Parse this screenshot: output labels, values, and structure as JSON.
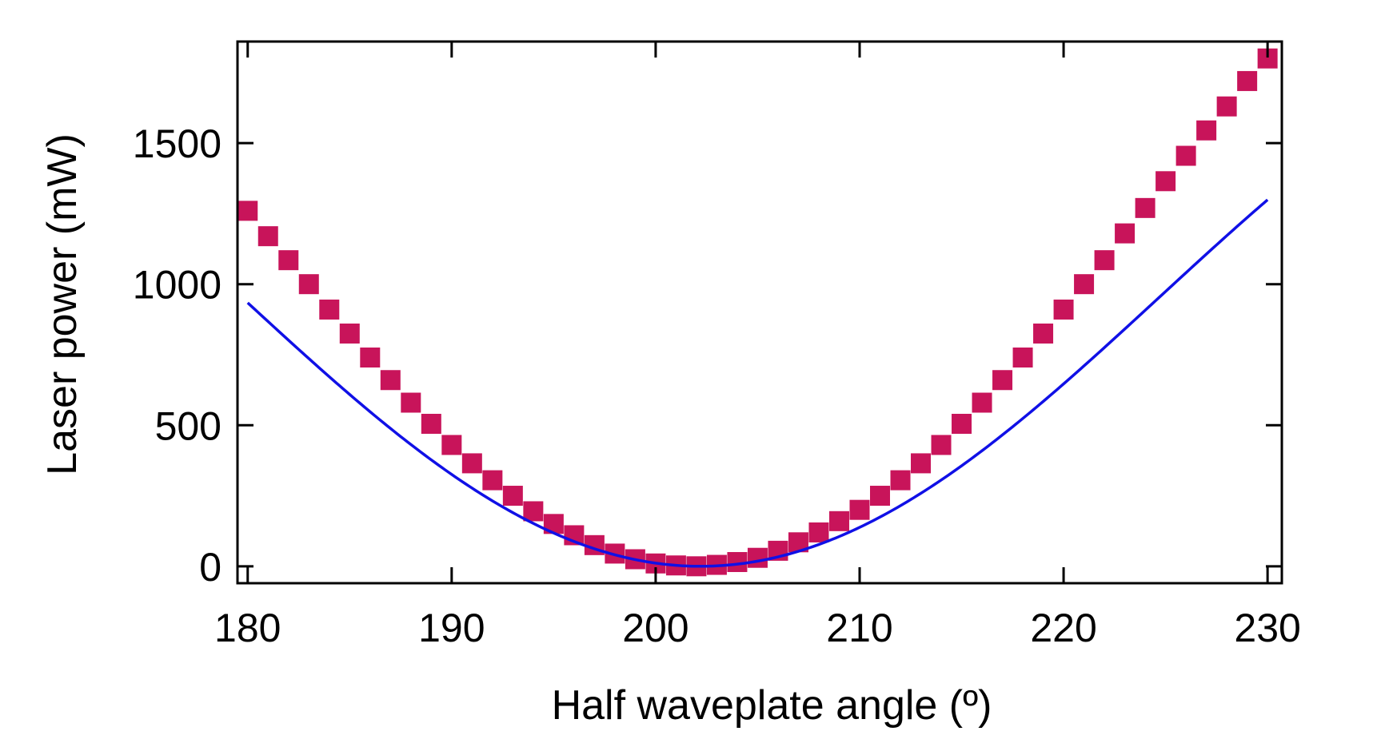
{
  "colors": {
    "marker": "#C8145A",
    "fit_line": "#1010E6",
    "axis": "#000000",
    "background": "#FFFFFF"
  },
  "chart_data": {
    "type": "scatter",
    "title": "",
    "xlabel": "Half waveplate angle (º)",
    "ylabel": "Laser power (mW)",
    "xlim": [
      179.5,
      230.7
    ],
    "ylim": [
      -60,
      1860
    ],
    "x_ticks": [
      180,
      190,
      200,
      210,
      220,
      230
    ],
    "x_tick_labels": [
      "180",
      "190",
      "200",
      "210",
      "220",
      "230"
    ],
    "y_ticks": [
      0,
      500,
      1000,
      1500
    ],
    "y_tick_labels": [
      "0",
      "500",
      "1000",
      "1500"
    ],
    "grid": false,
    "legend": "none",
    "series": [
      {
        "marker": "square",
        "x": [
          180,
          181,
          182,
          183,
          184,
          185,
          186,
          187,
          188,
          189,
          190,
          191,
          192,
          193,
          194,
          195,
          196,
          197,
          198,
          199,
          200,
          201,
          202,
          203,
          204,
          205,
          206,
          207,
          208,
          209,
          210,
          211,
          212,
          213,
          214,
          215,
          216,
          217,
          218,
          219,
          220,
          221,
          222,
          223,
          224,
          225,
          226,
          227,
          228,
          229,
          230
        ],
        "y": [
          1260,
          1170,
          1085,
          1000,
          910,
          825,
          740,
          660,
          580,
          505,
          430,
          365,
          305,
          250,
          195,
          150,
          110,
          75,
          45,
          25,
          10,
          3,
          0,
          5,
          15,
          30,
          55,
          85,
          120,
          160,
          200,
          250,
          305,
          365,
          430,
          505,
          580,
          660,
          740,
          825,
          910,
          1000,
          1085,
          1180,
          1270,
          1365,
          1455,
          1545,
          1630,
          1720,
          1800
        ]
      }
    ],
    "fit": {
      "type": "line",
      "x_start": 180,
      "x_end": 230,
      "x_min": 202.2,
      "y_min": 0,
      "amplitude": 1908,
      "period": 90
    }
  }
}
